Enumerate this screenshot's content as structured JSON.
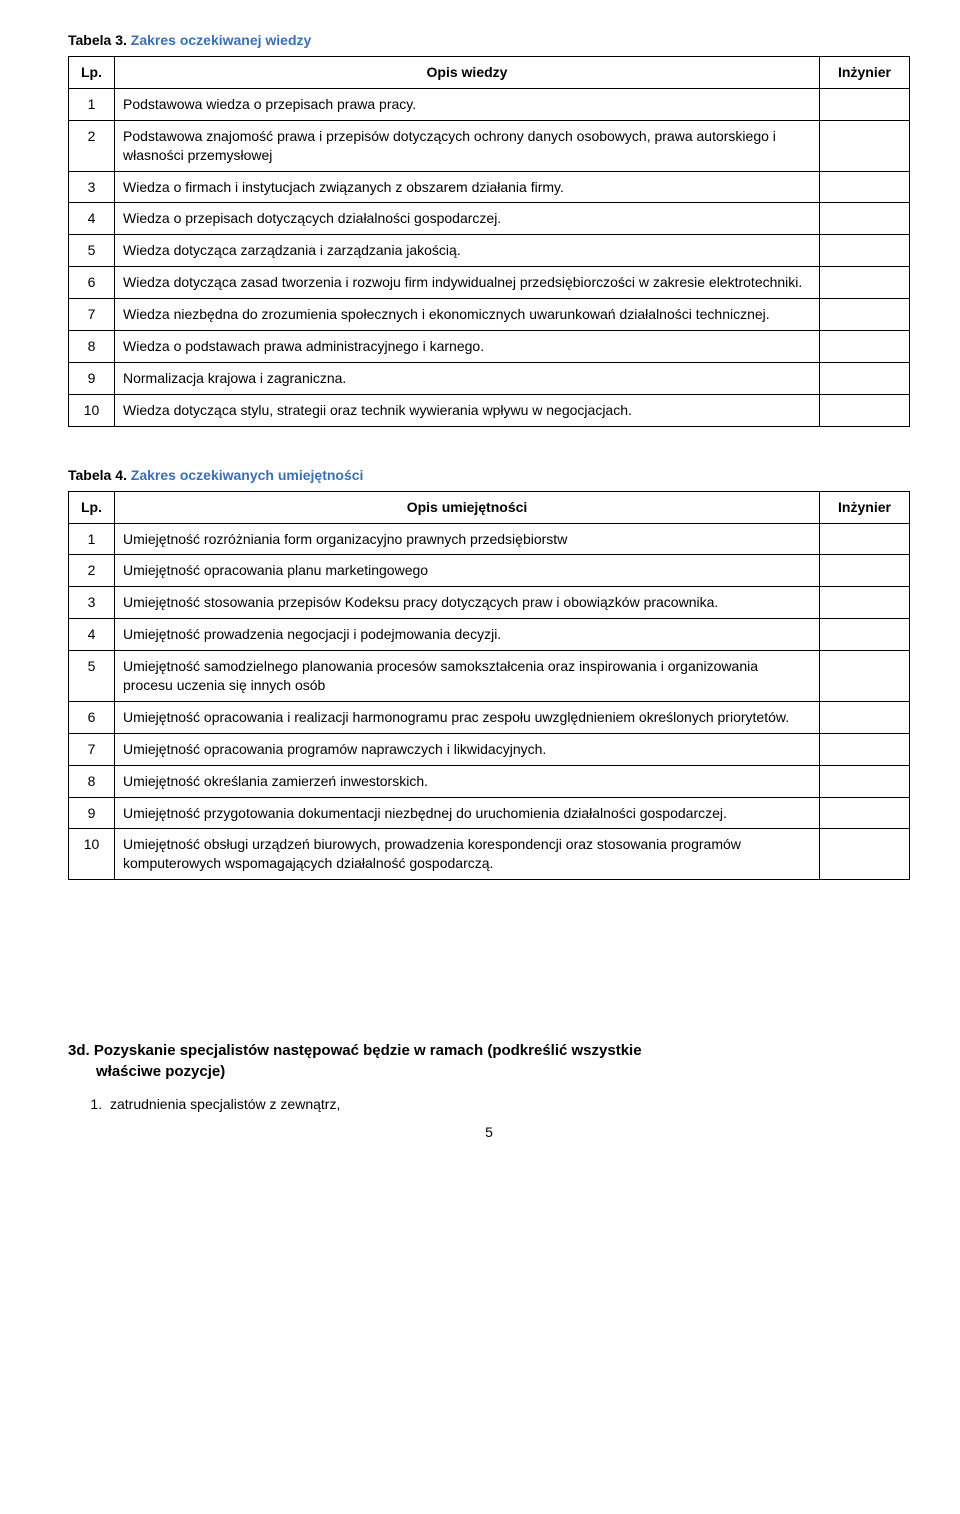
{
  "table3": {
    "caption_prefix": "Tabela 3.",
    "caption_rest": " Zakres oczekiwanej wiedzy",
    "headers": {
      "lp": "Lp.",
      "desc": "Opis wiedzy",
      "eng": "Inżynier"
    },
    "rows": [
      {
        "lp": "1",
        "desc": "Podstawowa wiedza o przepisach prawa pracy."
      },
      {
        "lp": "2",
        "desc": "Podstawowa znajomość prawa i przepisów dotyczących ochrony danych osobowych, prawa autorskiego i własności przemysłowej"
      },
      {
        "lp": "3",
        "desc": "Wiedza o firmach i instytucjach związanych z obszarem działania firmy."
      },
      {
        "lp": "4",
        "desc": "Wiedza o przepisach dotyczących działalności gospodarczej."
      },
      {
        "lp": "5",
        "desc": "Wiedza dotycząca zarządzania i zarządzania jakością."
      },
      {
        "lp": "6",
        "desc": "Wiedza dotycząca zasad tworzenia i rozwoju firm indywidualnej przedsiębiorczości w zakresie elektrotechniki."
      },
      {
        "lp": "7",
        "desc": "Wiedza niezbędna do zrozumienia społecznych i ekonomicznych uwarunkowań działalności technicznej."
      },
      {
        "lp": "8",
        "desc": "Wiedza o podstawach prawa administracyjnego i karnego."
      },
      {
        "lp": "9",
        "desc": "Normalizacja krajowa i zagraniczna."
      },
      {
        "lp": "10",
        "desc": "Wiedza dotycząca stylu, strategii oraz technik wywierania wpływu w negocjacjach."
      }
    ]
  },
  "table4": {
    "caption_prefix": "Tabela 4.",
    "caption_rest": " Zakres oczekiwanych umiejętności",
    "headers": {
      "lp": "Lp.",
      "desc": "Opis umiejętności",
      "eng": "Inżynier"
    },
    "rows": [
      {
        "lp": "1",
        "desc": "Umiejętność rozróżniania form organizacyjno prawnych przedsiębiorstw"
      },
      {
        "lp": "2",
        "desc": "Umiejętność opracowania planu marketingowego"
      },
      {
        "lp": "3",
        "desc": "Umiejętność stosowania przepisów Kodeksu pracy dotyczących praw i obowiązków pracownika."
      },
      {
        "lp": "4",
        "desc": "Umiejętność prowadzenia negocjacji i podejmowania decyzji."
      },
      {
        "lp": "5",
        "desc": "Umiejętność samodzielnego planowania procesów samokształcenia oraz inspirowania i organizowania procesu uczenia się innych osób"
      },
      {
        "lp": "6",
        "desc": "Umiejętność opracowania i realizacji harmonogramu prac zespołu uwzględnieniem określonych priorytetów."
      },
      {
        "lp": "7",
        "desc": "Umiejętność opracowania programów naprawczych i likwidacyjnych."
      },
      {
        "lp": "8",
        "desc": "Umiejętność określania zamierzeń inwestorskich."
      },
      {
        "lp": "9",
        "desc": "Umiejętność przygotowania dokumentacji niezbędnej do uruchomienia działalności gospodarczej."
      },
      {
        "lp": "10",
        "desc": "Umiejętność obsługi urządzeń biurowych, prowadzenia korespondencji oraz stosowania programów komputerowych wspomagających działalność gospodarczą."
      }
    ]
  },
  "section3d": {
    "heading_line1": "3d. Pozyskanie specjalistów następować będzie w ramach (podkreślić wszystkie",
    "heading_line2": "właściwe pozycje)",
    "items": [
      "zatrudnienia specjalistów z zewnątrz,"
    ]
  },
  "page_number": "5",
  "colors": {
    "caption_blue": "#3b6fb6"
  }
}
